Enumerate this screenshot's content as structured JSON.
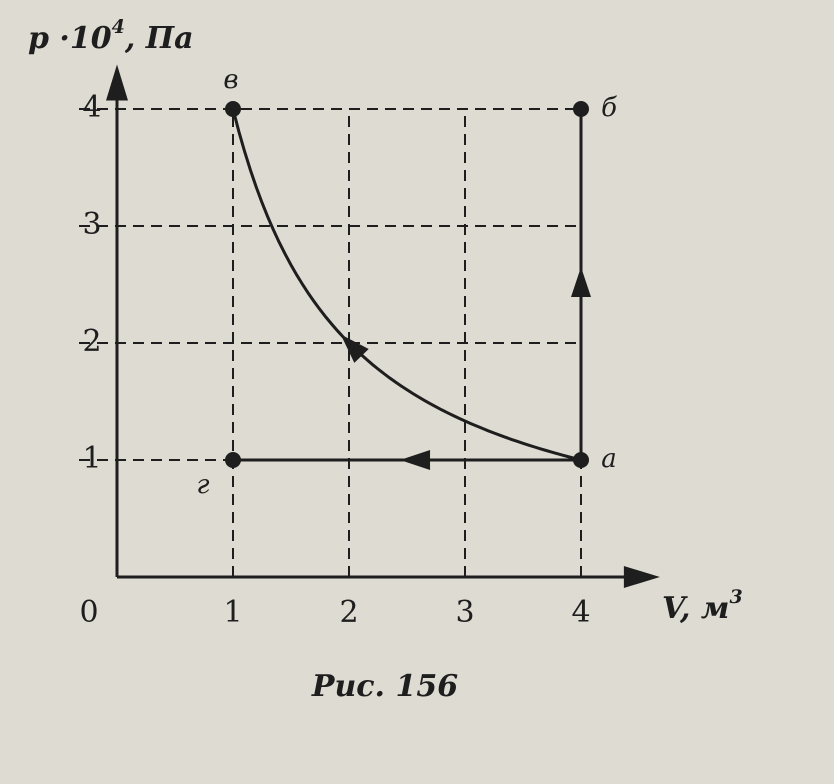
{
  "chart_data": {
    "type": "line",
    "y_label": "p ·10",
    "y_label_power": "4",
    "y_label_unit": ", Па",
    "x_label": "V, м",
    "x_label_power": "3",
    "caption": "Рис. 156",
    "xlim": [
      0,
      4.68
    ],
    "ylim": [
      0,
      4.38
    ],
    "xticks": [
      0,
      1,
      2,
      3,
      4
    ],
    "yticks": [
      1,
      2,
      3,
      4
    ],
    "grid": true,
    "color": "#1e1e1e",
    "series": [
      {
        "x": [
          4,
          4,
          1,
          1
        ],
        "values": [
          1,
          4,
          4,
          1
        ],
        "point_labels": [
          "а",
          "б",
          "в",
          "г"
        ]
      }
    ]
  }
}
